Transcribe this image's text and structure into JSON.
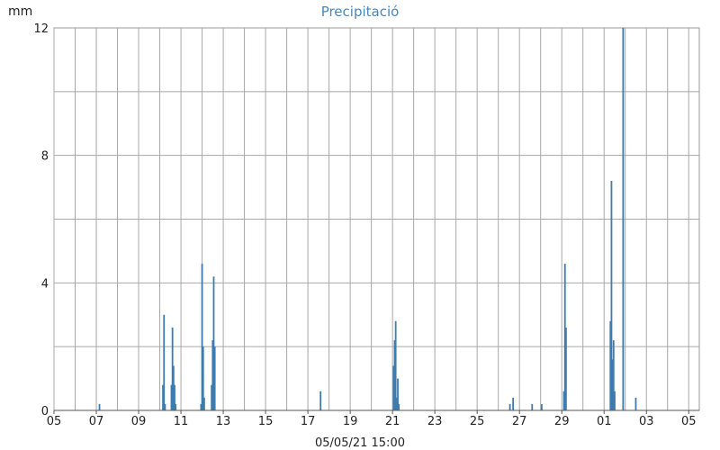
{
  "chart_data": {
    "type": "bar",
    "title": "Precipitació",
    "ylabel": "mm",
    "footer": "05/05/21 15:00",
    "ylim": [
      0,
      12
    ],
    "yticks": [
      0,
      4,
      8,
      12
    ],
    "xlim": [
      0,
      30.5
    ],
    "xticks": [
      {
        "day": 0,
        "label": "05"
      },
      {
        "day": 2,
        "label": "07"
      },
      {
        "day": 4,
        "label": "09"
      },
      {
        "day": 6,
        "label": "11"
      },
      {
        "day": 8,
        "label": "13"
      },
      {
        "day": 10,
        "label": "15"
      },
      {
        "day": 12,
        "label": "17"
      },
      {
        "day": 14,
        "label": "19"
      },
      {
        "day": 16,
        "label": "21"
      },
      {
        "day": 18,
        "label": "23"
      },
      {
        "day": 20,
        "label": "25"
      },
      {
        "day": 22,
        "label": "27"
      },
      {
        "day": 24,
        "label": "29"
      },
      {
        "day": 26,
        "label": "01"
      },
      {
        "day": 28,
        "label": "03"
      },
      {
        "day": 30,
        "label": "05"
      }
    ],
    "grid": true,
    "bar_color": "#3d7bb0",
    "x": [
      2.15,
      5.15,
      5.2,
      5.25,
      5.55,
      5.6,
      5.65,
      5.7,
      5.75,
      6.95,
      7.0,
      7.05,
      7.1,
      7.45,
      7.5,
      7.55,
      7.6,
      12.6,
      16.05,
      16.1,
      16.15,
      16.2,
      16.25,
      16.3,
      21.55,
      21.7,
      22.6,
      23.05,
      24.1,
      24.15,
      24.2,
      26.3,
      26.35,
      26.4,
      26.45,
      26.5,
      26.9,
      27.5
    ],
    "values": [
      0.2,
      0.8,
      3.0,
      0.2,
      0.8,
      2.6,
      1.4,
      0.8,
      0.2,
      0.2,
      4.6,
      2.0,
      0.4,
      0.8,
      2.2,
      4.2,
      2.0,
      0.6,
      1.4,
      2.2,
      2.8,
      0.4,
      1.0,
      0.2,
      0.2,
      0.4,
      0.2,
      0.2,
      0.6,
      4.6,
      2.6,
      2.8,
      7.2,
      1.6,
      2.2,
      0.6,
      12.0,
      0.4
    ]
  }
}
